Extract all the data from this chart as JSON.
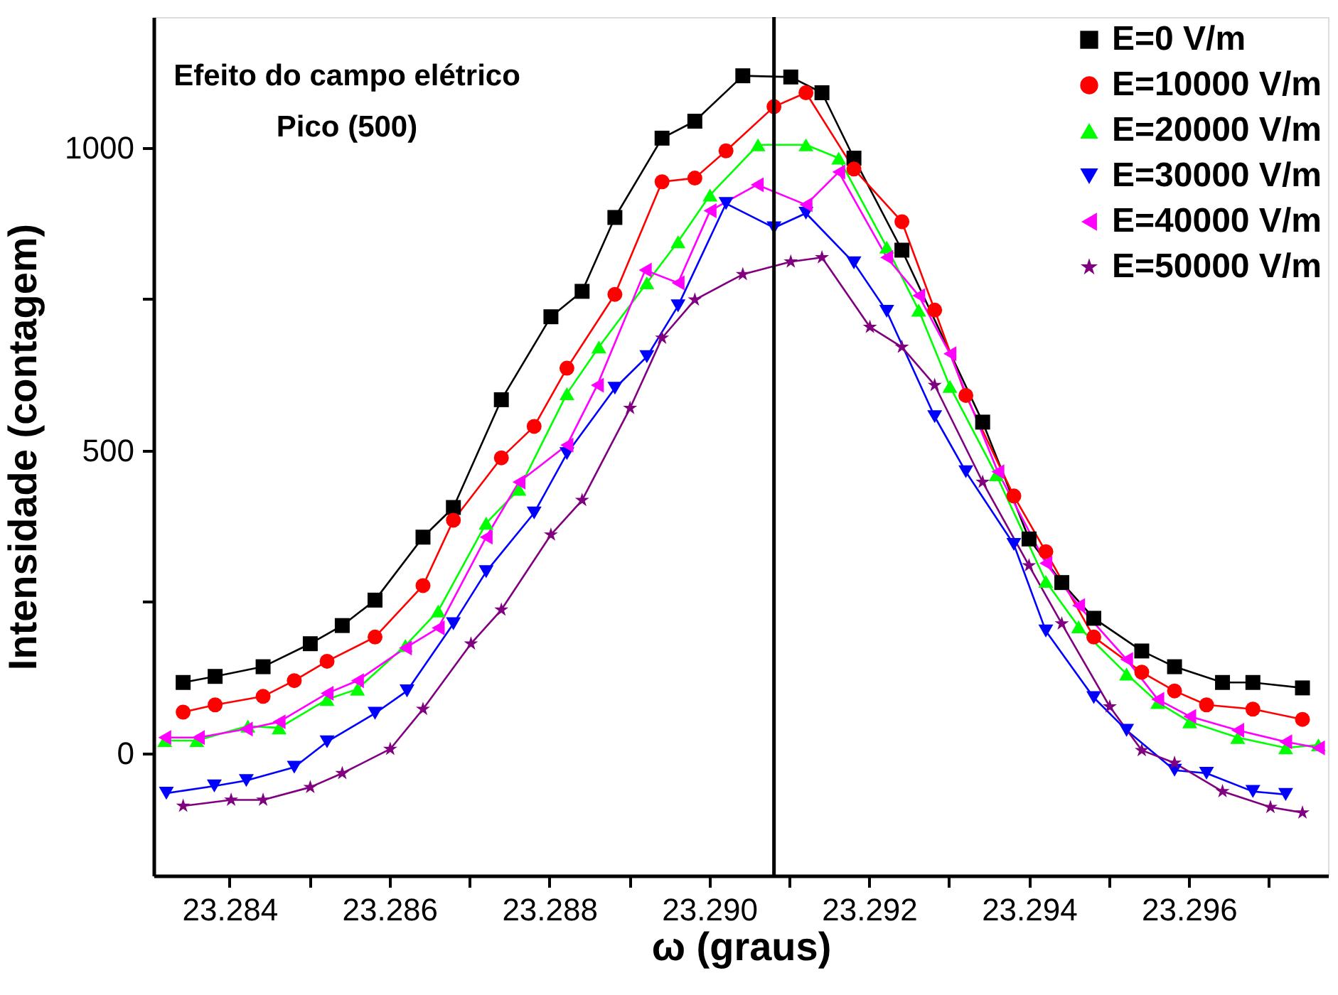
{
  "chart_data": {
    "type": "line",
    "xlabel": "ω (graus)",
    "ylabel": "Intensidade (contagem)",
    "annotations": [
      "Efeito do campo elétrico",
      "Pico (500)"
    ],
    "xlim": [
      23.28305,
      23.29774
    ],
    "ylim": [
      -202,
      1216
    ],
    "xticks": [
      23.284,
      {
        "value": 23.285,
        "label": null
      },
      23.286,
      {
        "value": 23.287,
        "label": null
      },
      23.288,
      {
        "value": 23.289,
        "label": null
      },
      {
        "value": 23.29,
        "label": "23.290"
      },
      {
        "value": 23.291,
        "label": null
      },
      23.292,
      {
        "value": 23.293,
        "label": null
      },
      23.294,
      {
        "value": 23.295,
        "label": null
      },
      23.296,
      {
        "value": 23.297,
        "label": null
      }
    ],
    "yticks": [
      0,
      {
        "value": 250,
        "label": null
      },
      500,
      {
        "value": 750,
        "label": null
      },
      1000
    ],
    "grid": false,
    "legend": "top right",
    "line_style": "solid",
    "ref_lines": [
      {
        "axis": "x",
        "value": 23.29081,
        "label": null,
        "color": "#000000"
      }
    ],
    "series": [
      {
        "name": "E=0 V/m",
        "color": "#000000",
        "marker": "square",
        "x": [
          23.28342,
          23.28382,
          23.28442,
          23.28501,
          23.28541,
          23.28582,
          23.28642,
          23.2868,
          23.2874,
          23.28802,
          23.28841,
          23.28882,
          23.28941,
          23.28982,
          23.29042,
          23.29102,
          23.29141,
          23.29181,
          23.29241,
          23.29342,
          23.294,
          23.29441,
          23.29481,
          23.29541,
          23.29582,
          23.29642,
          23.2968,
          23.29742
        ],
        "values": [
          117,
          127,
          143,
          181,
          211,
          253,
          357,
          406,
          584,
          721,
          763,
          885,
          1016,
          1044,
          1119,
          1117,
          1091,
          983,
          831,
          547,
          354,
          282,
          223,
          169,
          143,
          117,
          117,
          108
        ]
      },
      {
        "name": "E=10000 V/m",
        "color": "#ff0000",
        "marker": "circle",
        "x": [
          23.28342,
          23.28382,
          23.28442,
          23.28481,
          23.28522,
          23.28582,
          23.28642,
          23.2868,
          23.2874,
          23.28781,
          23.28822,
          23.28882,
          23.28941,
          23.28982,
          23.29021,
          23.29081,
          23.29121,
          23.29181,
          23.29241,
          23.29282,
          23.29321,
          23.29381,
          23.29421,
          23.29481,
          23.29541,
          23.29582,
          23.29622,
          23.2968,
          23.29742
        ],
        "values": [
          68,
          80,
          94,
          120,
          152,
          192,
          277,
          385,
          488,
          540,
          636,
          758,
          944,
          950,
          995,
          1068,
          1091,
          965,
          878,
          732,
          591,
          425,
          333,
          192,
          134,
          103,
          80,
          73,
          56
        ]
      },
      {
        "name": "E=20000 V/m",
        "color": "#00ff00",
        "marker": "triangle-up",
        "x": [
          23.28319,
          23.28359,
          23.28423,
          23.28462,
          23.28522,
          23.2856,
          23.2862,
          23.28661,
          23.28721,
          23.28762,
          23.28822,
          23.28862,
          23.28922,
          23.28961,
          23.29001,
          23.29061,
          23.29121,
          23.29162,
          23.29222,
          23.29262,
          23.29301,
          23.29359,
          23.29421,
          23.29462,
          23.29522,
          23.29561,
          23.29601,
          23.29661,
          23.29721,
          23.29762
        ],
        "values": [
          21,
          21,
          45,
          42,
          89,
          106,
          178,
          235,
          380,
          436,
          594,
          671,
          777,
          845,
          922,
          1005,
          1005,
          983,
          836,
          732,
          606,
          460,
          284,
          209,
          131,
          84,
          52,
          26,
          9,
          14
        ]
      },
      {
        "name": "E=30000 V/m",
        "color": "#0000ff",
        "marker": "triangle-down",
        "x": [
          23.28321,
          23.28381,
          23.28421,
          23.28481,
          23.28522,
          23.28582,
          23.28622,
          23.2868,
          23.28721,
          23.28781,
          23.28822,
          23.28882,
          23.28922,
          23.28961,
          23.29021,
          23.29081,
          23.29121,
          23.29181,
          23.29222,
          23.29282,
          23.29321,
          23.29381,
          23.29421,
          23.29481,
          23.29522,
          23.29582,
          23.29622,
          23.2968,
          23.29721
        ],
        "values": [
          -66,
          -54,
          -45,
          -23,
          19,
          66,
          103,
          214,
          300,
          397,
          495,
          603,
          655,
          739,
          908,
          868,
          892,
          810,
          730,
          556,
          465,
          345,
          202,
          92,
          38,
          -28,
          -33,
          -63,
          -68
        ]
      },
      {
        "name": "E=40000 V/m",
        "color": "#ff00ff",
        "marker": "triangle-left",
        "x": [
          23.28319,
          23.28361,
          23.28421,
          23.28462,
          23.28522,
          23.2856,
          23.2862,
          23.28661,
          23.28721,
          23.28762,
          23.28822,
          23.2886,
          23.2892,
          23.28961,
          23.29001,
          23.2906,
          23.29121,
          23.29162,
          23.29222,
          23.29262,
          23.29301,
          23.29361,
          23.29421,
          23.29462,
          23.29522,
          23.29561,
          23.29601,
          23.29661,
          23.29721,
          23.29762
        ],
        "values": [
          26,
          26,
          40,
          52,
          99,
          120,
          174,
          207,
          357,
          448,
          509,
          608,
          798,
          777,
          896,
          939,
          906,
          960,
          819,
          756,
          660,
          465,
          314,
          244,
          155,
          89,
          61,
          38,
          19,
          9
        ]
      },
      {
        "name": "E=50000 V/m",
        "color": "#800080",
        "marker": "star",
        "x": [
          23.28342,
          23.28402,
          23.28442,
          23.28501,
          23.28541,
          23.28601,
          23.28642,
          23.28702,
          23.2874,
          23.28802,
          23.28841,
          23.28901,
          23.28941,
          23.28982,
          23.29042,
          23.29102,
          23.29141,
          23.29201,
          23.29241,
          23.29282,
          23.29342,
          23.294,
          23.29441,
          23.29501,
          23.29541,
          23.29582,
          23.29642,
          23.29702,
          23.29742
        ],
        "values": [
          -87,
          -77,
          -77,
          -56,
          -33,
          7,
          73,
          181,
          237,
          361,
          418,
          570,
          686,
          749,
          791,
          812,
          819,
          704,
          671,
          608,
          448,
          310,
          214,
          77,
          5,
          -16,
          -63,
          -89,
          -98
        ]
      }
    ]
  }
}
